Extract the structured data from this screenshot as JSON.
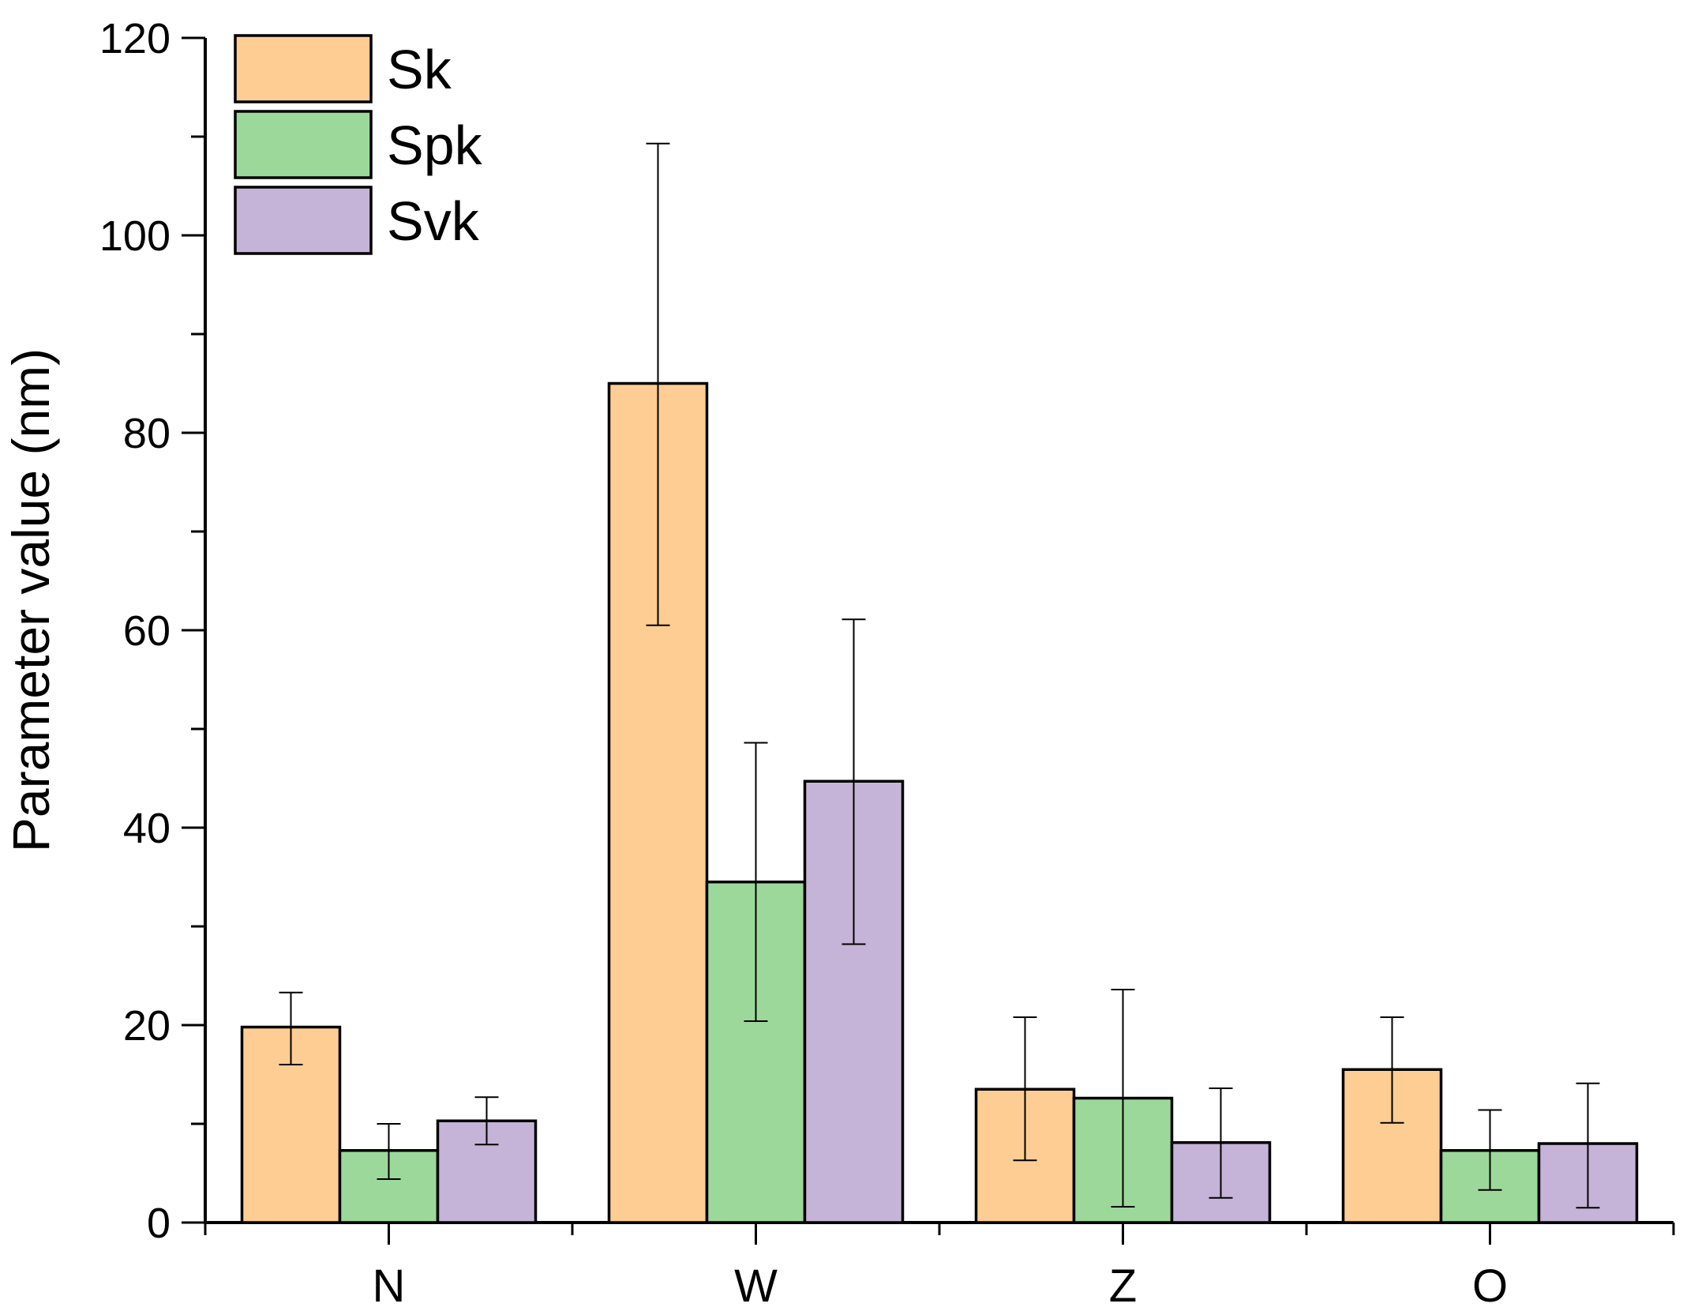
{
  "chart_data": {
    "type": "bar",
    "title": "",
    "xlabel": "",
    "ylabel": "Parameter value (nm)",
    "ylim": [
      0,
      120
    ],
    "yticks": [
      0,
      20,
      40,
      60,
      80,
      100,
      120
    ],
    "yminor_step": 10,
    "categories": [
      "N",
      "W",
      "Z",
      "O"
    ],
    "legend_position": "top-left",
    "series": [
      {
        "name": "Sk",
        "color": "#FDCD93",
        "values": [
          19.8,
          85.0,
          13.5,
          15.5
        ],
        "error_low": [
          16.0,
          60.5,
          6.3,
          10.1
        ],
        "error_high": [
          23.3,
          109.3,
          20.8,
          20.8
        ]
      },
      {
        "name": "Spk",
        "color": "#9DD89B",
        "values": [
          7.3,
          34.5,
          12.6,
          7.3
        ],
        "error_low": [
          4.4,
          20.4,
          1.6,
          3.3
        ],
        "error_high": [
          10.0,
          48.6,
          23.6,
          11.4
        ]
      },
      {
        "name": "Svk",
        "color": "#C5B4D7",
        "values": [
          10.3,
          44.7,
          8.1,
          8.0
        ],
        "error_low": [
          7.9,
          28.2,
          2.5,
          1.5
        ],
        "error_high": [
          12.7,
          61.1,
          13.6,
          14.1
        ]
      }
    ]
  }
}
